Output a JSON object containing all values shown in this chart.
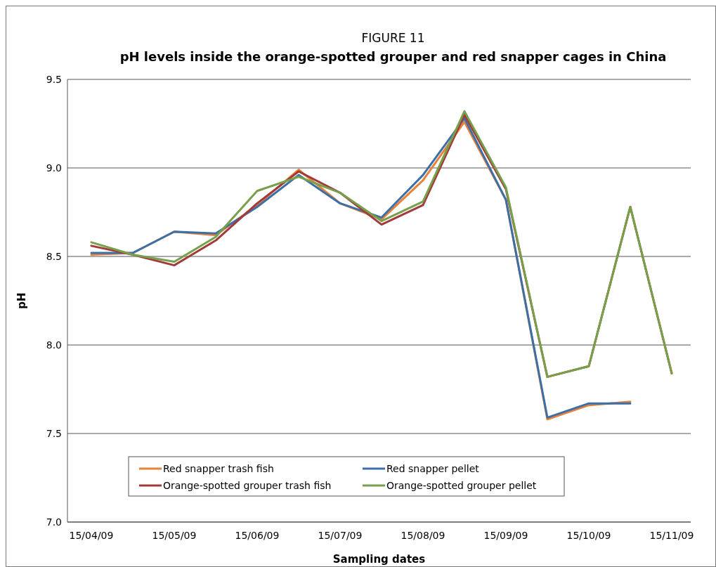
{
  "chart_data": {
    "type": "line",
    "title": "FIGURE 11",
    "subtitle": "pH levels inside the orange-spotted grouper and red snapper cages in China",
    "xlabel": "Sampling dates",
    "ylabel": "pH",
    "categories": [
      "15/04/09",
      null,
      "15/05/09",
      null,
      "15/06/09",
      null,
      "15/07/09",
      null,
      "15/08/09",
      null,
      "15/09/09",
      null,
      "15/10/09",
      null,
      "15/11/09"
    ],
    "series": [
      {
        "name": "Red snapper trash fish",
        "color": "#e8823a",
        "values": [
          8.51,
          8.52,
          8.64,
          8.62,
          8.79,
          8.99,
          8.8,
          8.71,
          8.93,
          9.26,
          8.82,
          7.58,
          7.66,
          7.68,
          null
        ]
      },
      {
        "name": "Red snapper pellet",
        "color": "#3b6fa8",
        "values": [
          8.52,
          8.52,
          8.64,
          8.63,
          8.78,
          8.96,
          8.8,
          8.72,
          8.96,
          9.28,
          8.82,
          7.59,
          7.67,
          7.67,
          null
        ]
      },
      {
        "name": "Orange-spotted grouper trash fish",
        "color": "#a33a3a",
        "values": [
          8.56,
          8.51,
          8.45,
          8.59,
          8.8,
          8.98,
          8.86,
          8.68,
          8.79,
          9.3,
          8.88,
          7.82,
          7.88,
          8.78,
          7.84
        ]
      },
      {
        "name": "Orange-spotted grouper pellet",
        "color": "#77a04a",
        "values": [
          8.58,
          8.51,
          8.47,
          8.61,
          8.87,
          8.95,
          8.86,
          8.7,
          8.81,
          9.32,
          8.89,
          7.82,
          7.88,
          8.78,
          7.84
        ]
      }
    ],
    "ylim": [
      7,
      9.5
    ],
    "yticks": [
      {
        "value": 7,
        "label": "7.0"
      },
      {
        "value": 7.5,
        "label": "7.5"
      },
      {
        "value": 8,
        "label": "8.0"
      },
      {
        "value": 8.5,
        "label": "8.5"
      },
      {
        "value": 9,
        "label": "9.0"
      },
      {
        "value": 9.5,
        "label": "9.5"
      }
    ],
    "grid": "y",
    "legend": "bottom",
    "marker": "none",
    "line_style": "solid"
  }
}
